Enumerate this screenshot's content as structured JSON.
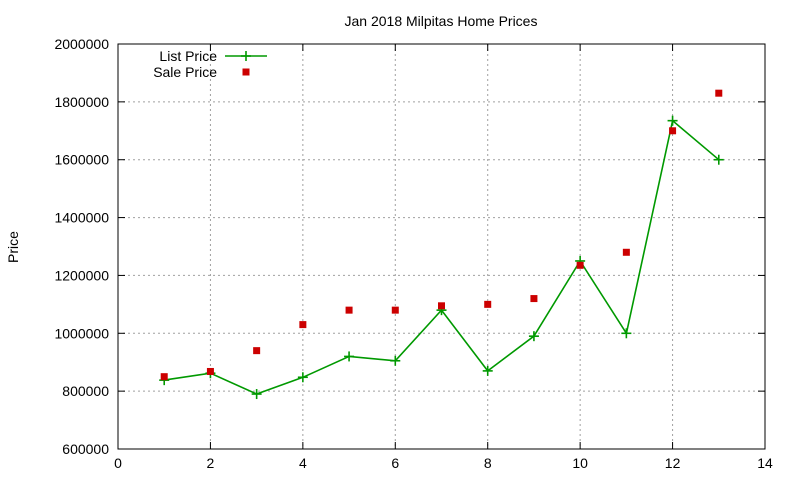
{
  "chart_data": {
    "type": "line",
    "title": "Jan 2018 Milpitas Home Prices",
    "xlabel": "",
    "ylabel": "Price",
    "xlim": [
      0,
      14
    ],
    "ylim": [
      600000,
      2000000
    ],
    "xticks": [
      0,
      2,
      4,
      6,
      8,
      10,
      12,
      14
    ],
    "yticks": [
      600000,
      800000,
      1000000,
      1200000,
      1400000,
      1600000,
      1800000,
      2000000
    ],
    "grid": true,
    "legend_position": "top-left",
    "series": [
      {
        "name": "List Price",
        "style": "line+cross",
        "color": "#009900",
        "x": [
          1,
          2,
          3,
          4,
          5,
          6,
          7,
          8,
          9,
          10,
          11,
          12,
          13
        ],
        "y": [
          838000,
          862000,
          790000,
          848000,
          920000,
          905000,
          1080000,
          870000,
          990000,
          1250000,
          1000000,
          1735000,
          1600000
        ]
      },
      {
        "name": "Sale Price",
        "style": "square",
        "color": "#cc0000",
        "x": [
          1,
          2,
          3,
          4,
          5,
          6,
          7,
          8,
          9,
          10,
          11,
          12,
          13
        ],
        "y": [
          850000,
          868000,
          940000,
          1030000,
          1080000,
          1080000,
          1095000,
          1100000,
          1120000,
          1235000,
          1280000,
          1700000,
          1830000
        ]
      }
    ]
  }
}
